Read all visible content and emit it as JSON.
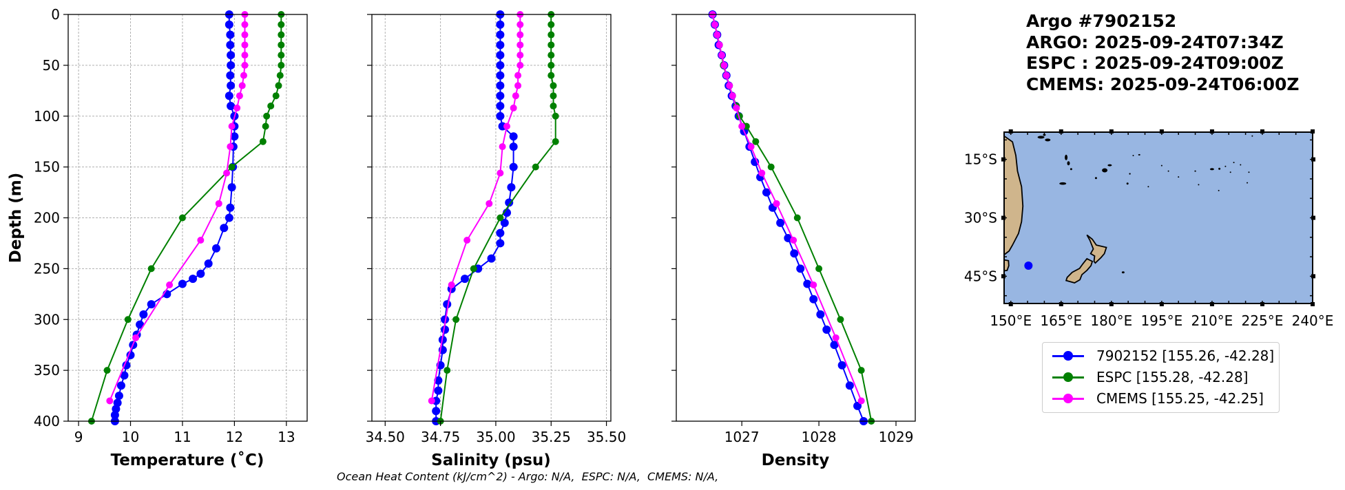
{
  "info": {
    "title": "Argo #7902152",
    "argo_time": "ARGO: 2025-09-24T07:34Z",
    "espc_time": "ESPC : 2025-09-24T09:00Z",
    "cmems_time": "CMEMS: 2025-09-24T06:00Z"
  },
  "footer": "Ocean Heat Content (kJ/cm^2) - Argo: N/A,  ESPC: N/A,  CMEMS: N/A,",
  "colors": {
    "argo": "#0000ff",
    "espc": "#008000",
    "cmems": "#ff00ff",
    "ocean": "#98b6e2",
    "land": "#cfb58c"
  },
  "legend": [
    {
      "label": "7902152 [155.26, -42.28]",
      "color": "#0000ff"
    },
    {
      "label": "ESPC [155.28, -42.28]",
      "color": "#008000"
    },
    {
      "label": "CMEMS [155.25, -42.25]",
      "color": "#ff00ff"
    }
  ],
  "chart_data": [
    {
      "type": "line",
      "title": "",
      "xlabel": "Temperature (˚C)",
      "ylabel": "Depth (m)",
      "xlim": [
        8.8,
        13.4
      ],
      "ylim": [
        400,
        0
      ],
      "xticks": [
        9,
        10,
        11,
        12,
        13
      ],
      "yticks": [
        0,
        50,
        100,
        150,
        200,
        250,
        300,
        350,
        400
      ],
      "grid": true,
      "series": [
        {
          "name": "7902152",
          "color": "#0000ff",
          "marker_size": 6,
          "x": [
            11.9,
            11.9,
            11.92,
            11.92,
            11.93,
            11.93,
            11.92,
            11.93,
            11.9,
            11.93,
            12.0,
            12.0,
            12.0,
            11.98,
            11.97,
            11.95,
            11.92,
            11.9,
            11.8,
            11.65,
            11.5,
            11.35,
            11.2,
            11.0,
            10.7,
            10.4,
            10.25,
            10.18,
            10.12,
            10.05,
            10.0,
            9.92,
            9.88,
            9.82,
            9.78,
            9.75,
            9.72,
            9.7,
            9.7
          ],
          "y": [
            0,
            10,
            20,
            30,
            40,
            50,
            60,
            70,
            80,
            90,
            100,
            110,
            120,
            130,
            150,
            170,
            190,
            200,
            210,
            230,
            245,
            255,
            260,
            265,
            275,
            285,
            295,
            305,
            315,
            325,
            335,
            345,
            355,
            365,
            375,
            382,
            388,
            394,
            400
          ]
        },
        {
          "name": "ESPC",
          "color": "#008000",
          "marker_size": 5,
          "x": [
            12.9,
            12.9,
            12.9,
            12.9,
            12.9,
            12.9,
            12.88,
            12.85,
            12.8,
            12.7,
            12.62,
            12.6,
            12.55,
            11.95,
            11.0,
            10.4,
            9.95,
            9.55,
            9.25
          ],
          "y": [
            0,
            10,
            20,
            30,
            40,
            50,
            60,
            70,
            80,
            90,
            100,
            110,
            125,
            150,
            200,
            250,
            300,
            350,
            400
          ]
        },
        {
          "name": "CMEMS",
          "color": "#ff00ff",
          "marker_size": 5,
          "x": [
            12.2,
            12.2,
            12.2,
            12.2,
            12.2,
            12.2,
            12.18,
            12.15,
            12.1,
            12.05,
            11.95,
            11.92,
            11.85,
            11.7,
            11.35,
            10.75,
            10.1,
            9.6
          ],
          "y": [
            0,
            10,
            20,
            30,
            40,
            50,
            60,
            70,
            80,
            92,
            110,
            130,
            156,
            186,
            222,
            266,
            318,
            380
          ]
        }
      ]
    },
    {
      "type": "line",
      "title": "",
      "xlabel": "Salinity (psu)",
      "ylabel": "",
      "xlim": [
        34.44,
        35.52
      ],
      "ylim": [
        400,
        0
      ],
      "xticks": [
        34.5,
        34.75,
        35.0,
        35.25,
        35.5
      ],
      "xticklabels": [
        "34.50",
        "34.75",
        "35.00",
        "35.25",
        "35.50"
      ],
      "yticks": [
        0,
        50,
        100,
        150,
        200,
        250,
        300,
        350,
        400
      ],
      "grid": true,
      "series": [
        {
          "name": "7902152",
          "color": "#0000ff",
          "marker_size": 6,
          "x": [
            35.02,
            35.02,
            35.02,
            35.02,
            35.02,
            35.02,
            35.02,
            35.02,
            35.02,
            35.02,
            35.02,
            35.03,
            35.08,
            35.08,
            35.08,
            35.07,
            35.06,
            35.05,
            35.04,
            35.02,
            35.02,
            34.98,
            34.92,
            34.86,
            34.8,
            34.78,
            34.77,
            34.77,
            34.76,
            34.76,
            34.75,
            34.74,
            34.74,
            34.73,
            34.73,
            34.73
          ],
          "y": [
            0,
            10,
            20,
            30,
            40,
            50,
            60,
            70,
            80,
            90,
            100,
            110,
            120,
            130,
            150,
            170,
            185,
            195,
            205,
            215,
            225,
            240,
            250,
            260,
            270,
            285,
            300,
            310,
            320,
            330,
            345,
            360,
            370,
            380,
            390,
            400
          ]
        },
        {
          "name": "ESPC",
          "color": "#008000",
          "marker_size": 5,
          "x": [
            35.25,
            35.25,
            35.25,
            35.25,
            35.25,
            35.25,
            35.25,
            35.26,
            35.26,
            35.26,
            35.27,
            35.27,
            35.18,
            35.02,
            34.9,
            34.82,
            34.78,
            34.75
          ],
          "y": [
            0,
            10,
            20,
            30,
            40,
            50,
            60,
            70,
            80,
            90,
            100,
            125,
            150,
            200,
            250,
            300,
            350,
            400
          ]
        },
        {
          "name": "CMEMS",
          "color": "#ff00ff",
          "marker_size": 5,
          "x": [
            35.11,
            35.11,
            35.11,
            35.11,
            35.11,
            35.11,
            35.1,
            35.1,
            35.09,
            35.08,
            35.05,
            35.03,
            35.02,
            34.97,
            34.87,
            34.8,
            34.71
          ],
          "y": [
            0,
            10,
            20,
            30,
            40,
            50,
            60,
            70,
            80,
            92,
            110,
            130,
            156,
            186,
            222,
            266,
            380
          ]
        }
      ]
    },
    {
      "type": "line",
      "title": "",
      "xlabel": "Density",
      "ylabel": "",
      "xlim": [
        1026.15,
        1029.25
      ],
      "ylim": [
        400,
        0
      ],
      "xticks": [
        1027,
        1028,
        1029
      ],
      "yticks": [
        0,
        50,
        100,
        150,
        200,
        250,
        300,
        350,
        400
      ],
      "grid": false,
      "series": [
        {
          "name": "7902152",
          "color": "#0000ff",
          "marker_size": 6,
          "x": [
            1026.62,
            1026.65,
            1026.68,
            1026.7,
            1026.74,
            1026.77,
            1026.8,
            1026.83,
            1026.87,
            1026.92,
            1026.96,
            1027.03,
            1027.1,
            1027.17,
            1027.24,
            1027.32,
            1027.4,
            1027.5,
            1027.6,
            1027.68,
            1027.76,
            1027.85,
            1027.93,
            1028.02,
            1028.1,
            1028.2,
            1028.3,
            1028.4,
            1028.5,
            1028.58
          ],
          "y": [
            0,
            10,
            20,
            30,
            40,
            50,
            60,
            70,
            80,
            90,
            100,
            115,
            130,
            145,
            160,
            175,
            190,
            205,
            220,
            235,
            250,
            265,
            280,
            295,
            310,
            325,
            345,
            365,
            385,
            400
          ]
        },
        {
          "name": "ESPC",
          "color": "#008000",
          "marker_size": 5,
          "x": [
            1026.62,
            1026.65,
            1026.68,
            1026.71,
            1026.74,
            1026.76,
            1026.8,
            1026.84,
            1026.88,
            1026.93,
            1026.97,
            1027.06,
            1027.18,
            1027.38,
            1027.72,
            1028.0,
            1028.28,
            1028.55,
            1028.68
          ],
          "y": [
            0,
            10,
            20,
            30,
            40,
            50,
            60,
            70,
            80,
            90,
            100,
            110,
            125,
            150,
            200,
            250,
            300,
            350,
            400
          ]
        },
        {
          "name": "CMEMS",
          "color": "#ff00ff",
          "marker_size": 5,
          "x": [
            1026.62,
            1026.65,
            1026.68,
            1026.71,
            1026.74,
            1026.77,
            1026.8,
            1026.84,
            1026.88,
            1026.93,
            1027.0,
            1027.12,
            1027.26,
            1027.45,
            1027.67,
            1027.93,
            1028.22,
            1028.55
          ],
          "y": [
            0,
            10,
            20,
            30,
            40,
            50,
            60,
            70,
            80,
            92,
            110,
            130,
            156,
            186,
            222,
            266,
            318,
            380
          ]
        }
      ]
    },
    {
      "type": "map",
      "title": "",
      "lon_range": [
        148,
        240
      ],
      "lat_range": [
        -52,
        -8
      ],
      "lon_ticks": [
        150,
        165,
        180,
        195,
        210,
        225,
        240
      ],
      "lon_tick_labels": [
        "150°E",
        "165°E",
        "180°E",
        "195°E",
        "210°E",
        "225°E",
        "240°E"
      ],
      "lat_ticks": [
        -15,
        -30,
        -45
      ],
      "lat_tick_labels": [
        "15°S",
        "30°S",
        "45°S"
      ],
      "marker": {
        "lon": 155.26,
        "lat": -42.28,
        "color": "#0000ff"
      }
    }
  ]
}
